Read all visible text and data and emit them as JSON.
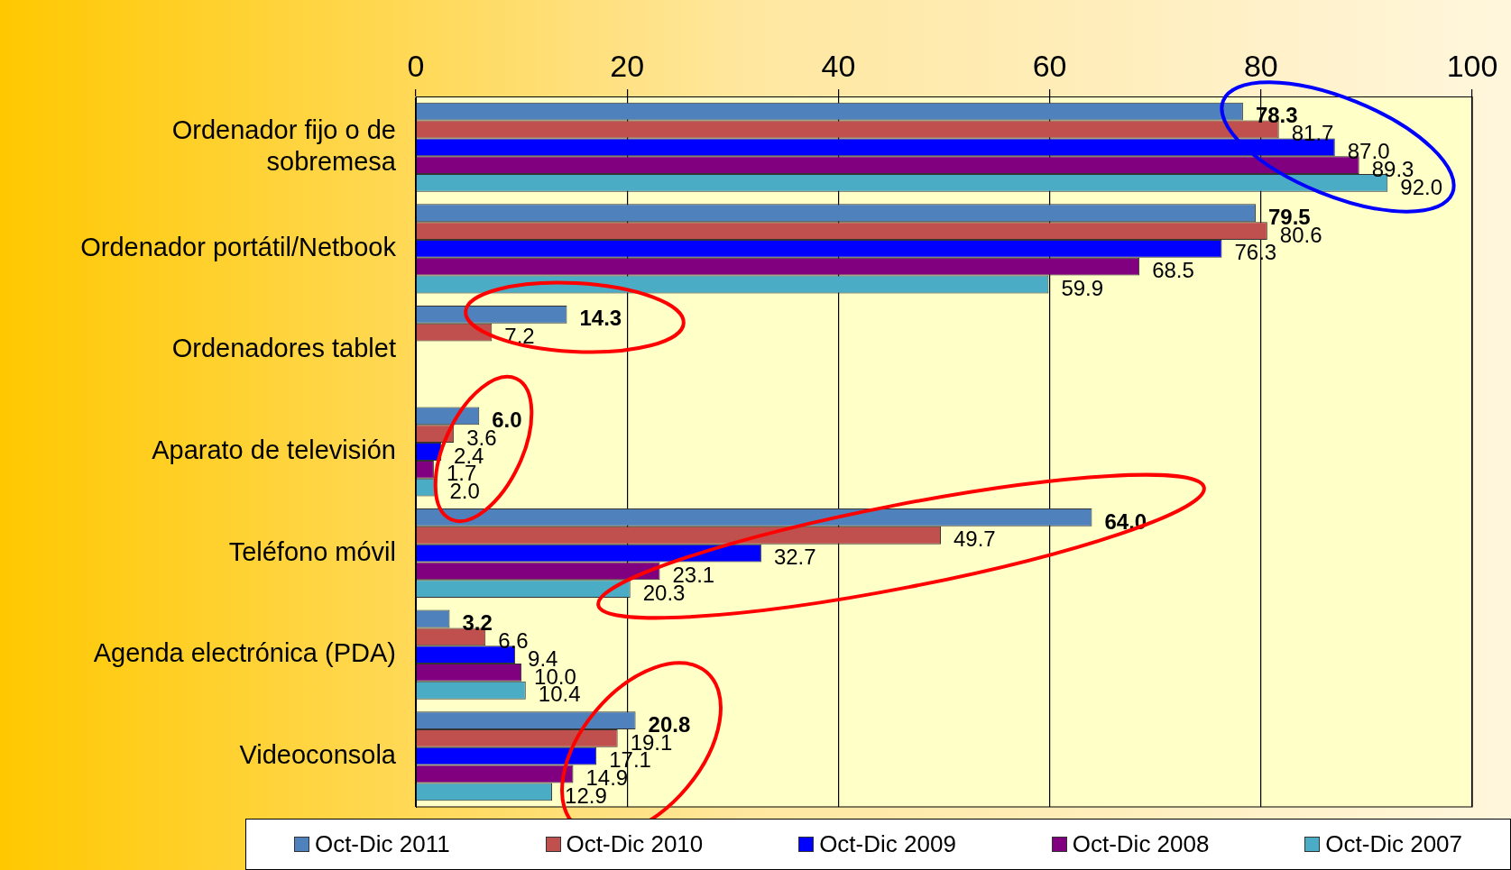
{
  "chart_data": {
    "type": "bar",
    "orientation": "horizontal",
    "categories": [
      "Ordenador fijo o de sobremesa",
      "Ordenador portátil/Netbook",
      "Ordenadores tablet",
      "Aparato de televisión",
      "Teléfono móvil",
      "Agenda electrónica (PDA)",
      "Videoconsola"
    ],
    "series": [
      {
        "name": "Oct-Dic 2011",
        "color": "#4f81bd",
        "values": [
          78.3,
          79.5,
          14.3,
          6.0,
          64.0,
          3.2,
          20.8
        ],
        "value_labels": [
          "78.3",
          "79.5",
          "14.3",
          "6.0",
          "64.0",
          "3.2",
          "20.8"
        ]
      },
      {
        "name": "Oct-Dic 2010",
        "color": "#c0504d",
        "values": [
          81.7,
          80.6,
          7.2,
          3.6,
          49.7,
          6.6,
          19.1
        ],
        "value_labels": [
          "81.7",
          "80.6",
          "7.2",
          "3.6",
          "49.7",
          "6.6",
          "19.1"
        ]
      },
      {
        "name": "Oct-Dic 2009",
        "color": "#0000ff",
        "values": [
          87.0,
          76.3,
          null,
          2.4,
          32.7,
          9.4,
          17.1
        ],
        "value_labels": [
          "87.0",
          "76.3",
          null,
          "2.4",
          "32.7",
          "9.4",
          "17.1"
        ]
      },
      {
        "name": "Oct-Dic 2008",
        "color": "#800080",
        "values": [
          89.3,
          68.5,
          null,
          1.7,
          23.1,
          10.0,
          14.9
        ],
        "value_labels": [
          "89.3",
          "68.5",
          null,
          "1.7",
          "23.1",
          "10.0",
          "14.9"
        ]
      },
      {
        "name": "Oct-Dic 2007",
        "color": "#4bacc6",
        "values": [
          92.0,
          59.9,
          null,
          2.0,
          20.3,
          10.4,
          12.9
        ],
        "value_labels": [
          "92.0",
          "59.9",
          null,
          "2.0",
          "20.3",
          "10.4",
          "12.9"
        ]
      }
    ],
    "xlim": [
      0,
      100
    ],
    "xticks": [
      0,
      20,
      40,
      60,
      80,
      100
    ],
    "grid": "x",
    "legend": "bottom"
  }
}
